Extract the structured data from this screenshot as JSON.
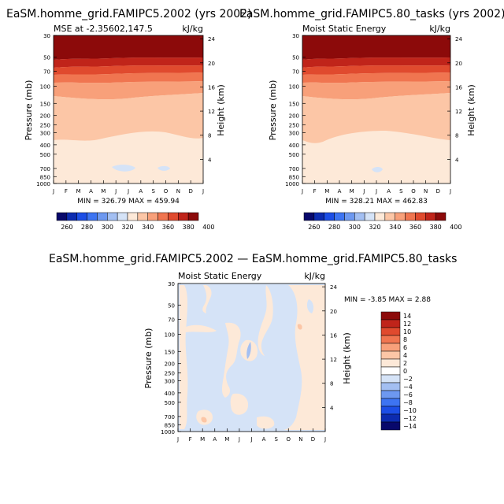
{
  "chart_data": [
    {
      "type": "heatmap",
      "title": "EaSM.homme_grid.FAMIPC5.2002 (yrs 2002)",
      "subtitle_left": "MSE at -2.35602,147.5",
      "subtitle_right": "kJ/kg",
      "ylabel": "Pressure (mb)",
      "y2label": "Height (km)",
      "x_ticks": [
        "J",
        "F",
        "M",
        "A",
        "M",
        "J",
        "J",
        "A",
        "S",
        "O",
        "N",
        "D",
        "J"
      ],
      "pressure_ticks": [
        "30",
        "50",
        "70",
        "100",
        "150",
        "200",
        "250",
        "300",
        "400",
        "500",
        "700",
        "850",
        "1000"
      ],
      "height_ticks": [
        "4",
        "8",
        "12",
        "16",
        "20",
        "24"
      ],
      "min_max_text": "MIN = 326.79   MAX = 459.94",
      "colorbar_labels": [
        "260",
        "280",
        "300",
        "320",
        "340",
        "360",
        "380",
        "400"
      ]
    },
    {
      "type": "heatmap",
      "title": "EaSM.homme_grid.FAMIPC5.80_tasks (yrs 2002)",
      "subtitle_left": "Moist Static Energy",
      "subtitle_right": "kJ/kg",
      "ylabel": "Pressure (mb)",
      "y2label": "Height (km)",
      "x_ticks": [
        "J",
        "F",
        "M",
        "A",
        "M",
        "J",
        "J",
        "A",
        "S",
        "O",
        "N",
        "D",
        "J"
      ],
      "pressure_ticks": [
        "30",
        "50",
        "70",
        "100",
        "150",
        "200",
        "250",
        "300",
        "400",
        "500",
        "700",
        "850",
        "1000"
      ],
      "height_ticks": [
        "4",
        "8",
        "12",
        "16",
        "20",
        "24"
      ],
      "min_max_text": "MIN = 328.21   MAX = 462.83",
      "colorbar_labels": [
        "260",
        "280",
        "300",
        "320",
        "340",
        "360",
        "380",
        "400"
      ]
    },
    {
      "type": "heatmap",
      "title": "EaSM.homme_grid.FAMIPC5.2002 — EaSM.homme_grid.FAMIPC5.80_tasks",
      "subtitle_left": "Moist Static Energy",
      "subtitle_right": "kJ/kg",
      "ylabel": "Pressure (mb)",
      "y2label": "Height (km)",
      "x_ticks": [
        "J",
        "F",
        "M",
        "A",
        "M",
        "J",
        "J",
        "A",
        "S",
        "O",
        "N",
        "D",
        "J"
      ],
      "pressure_ticks": [
        "30",
        "50",
        "70",
        "100",
        "150",
        "200",
        "250",
        "300",
        "400",
        "500",
        "700",
        "850",
        "1000"
      ],
      "height_ticks": [
        "4",
        "8",
        "12",
        "16",
        "20",
        "24"
      ],
      "min_max_text": "MIN =   -3.85 MAX =    2.88",
      "colorbar_labels": [
        "14",
        "12",
        "10",
        "8",
        "6",
        "4",
        "2",
        "0",
        "−2",
        "−4",
        "−6",
        "−8",
        "−10",
        "−12",
        "−14"
      ]
    }
  ],
  "palettes": {
    "sequential": [
      "#08086b",
      "#0c2bb0",
      "#1c4ee6",
      "#3d74f2",
      "#6d98f0",
      "#a3bff2",
      "#d5e3f7",
      "#fde9d8",
      "#fcc6a6",
      "#f8a07a",
      "#f07550",
      "#e04a2e",
      "#c0241a",
      "#8c0a0a"
    ],
    "diverging": [
      "#8c0a0a",
      "#c0241a",
      "#e04a2e",
      "#f07550",
      "#f8a07a",
      "#fcc6a6",
      "#fde9d8",
      "#ffffff",
      "#d5e3f7",
      "#a3bff2",
      "#6d98f0",
      "#3d74f2",
      "#1c4ee6",
      "#0c2bb0",
      "#08086b"
    ]
  }
}
